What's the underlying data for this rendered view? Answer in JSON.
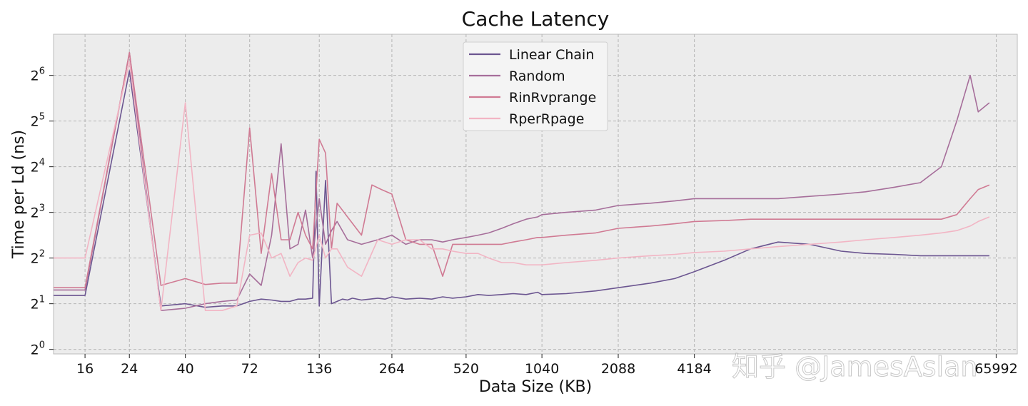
{
  "chart_data": {
    "type": "line",
    "title": "Cache Latency",
    "xlabel": "Data Size (KB)",
    "ylabel": "Time per Ld (ns)",
    "x_scale": "log2",
    "y_scale": "log2",
    "x_ticks": [
      "16",
      "24",
      "40",
      "72",
      "136",
      "264",
      "520",
      "1040",
      "2088",
      "4184",
      "65992"
    ],
    "y_ticks": [
      0,
      1,
      2,
      3,
      4,
      5,
      6
    ],
    "y_tick_base": "2",
    "grid": true,
    "legend_position": "top-center",
    "background": "#ececec",
    "series": [
      {
        "name": "Linear Chain",
        "color": "#6b5590",
        "points": [
          [
            12,
            1.18
          ],
          [
            16,
            1.18
          ],
          [
            24,
            6.1
          ],
          [
            32,
            0.95
          ],
          [
            40,
            1.0
          ],
          [
            48,
            0.92
          ],
          [
            56,
            0.95
          ],
          [
            64,
            0.95
          ],
          [
            72,
            1.05
          ],
          [
            80,
            1.1
          ],
          [
            88,
            1.08
          ],
          [
            96,
            1.05
          ],
          [
            104,
            1.05
          ],
          [
            112,
            1.1
          ],
          [
            120,
            1.1
          ],
          [
            128,
            1.12
          ],
          [
            132,
            3.9
          ],
          [
            136,
            0.95
          ],
          [
            144,
            3.7
          ],
          [
            152,
            1.0
          ],
          [
            160,
            1.05
          ],
          [
            168,
            1.1
          ],
          [
            176,
            1.08
          ],
          [
            184,
            1.12
          ],
          [
            200,
            1.08
          ],
          [
            216,
            1.1
          ],
          [
            232,
            1.12
          ],
          [
            248,
            1.1
          ],
          [
            264,
            1.15
          ],
          [
            300,
            1.1
          ],
          [
            340,
            1.12
          ],
          [
            380,
            1.1
          ],
          [
            420,
            1.15
          ],
          [
            460,
            1.12
          ],
          [
            520,
            1.15
          ],
          [
            580,
            1.2
          ],
          [
            640,
            1.18
          ],
          [
            720,
            1.2
          ],
          [
            800,
            1.22
          ],
          [
            900,
            1.2
          ],
          [
            1000,
            1.25
          ],
          [
            1040,
            1.2
          ],
          [
            1300,
            1.22
          ],
          [
            1700,
            1.28
          ],
          [
            2088,
            1.35
          ],
          [
            2800,
            1.45
          ],
          [
            3500,
            1.55
          ],
          [
            4184,
            1.7
          ],
          [
            5500,
            1.95
          ],
          [
            7000,
            2.2
          ],
          [
            9000,
            2.35
          ],
          [
            12000,
            2.3
          ],
          [
            16000,
            2.15
          ],
          [
            20000,
            2.1
          ],
          [
            26000,
            2.08
          ],
          [
            33000,
            2.05
          ],
          [
            42000,
            2.05
          ],
          [
            52000,
            2.05
          ],
          [
            62000,
            2.05
          ]
        ]
      },
      {
        "name": "Random",
        "color": "#a66e9a",
        "points": [
          [
            12,
            1.3
          ],
          [
            16,
            1.3
          ],
          [
            24,
            6.5
          ],
          [
            32,
            0.85
          ],
          [
            40,
            0.9
          ],
          [
            48,
            1.0
          ],
          [
            56,
            1.05
          ],
          [
            64,
            1.08
          ],
          [
            72,
            1.65
          ],
          [
            80,
            1.4
          ],
          [
            88,
            2.5
          ],
          [
            96,
            4.5
          ],
          [
            104,
            2.2
          ],
          [
            112,
            2.3
          ],
          [
            120,
            3.05
          ],
          [
            128,
            2.0
          ],
          [
            136,
            3.3
          ],
          [
            144,
            2.3
          ],
          [
            152,
            2.6
          ],
          [
            160,
            2.8
          ],
          [
            176,
            2.4
          ],
          [
            200,
            2.3
          ],
          [
            232,
            2.4
          ],
          [
            264,
            2.5
          ],
          [
            300,
            2.3
          ],
          [
            340,
            2.4
          ],
          [
            380,
            2.4
          ],
          [
            420,
            2.35
          ],
          [
            460,
            2.4
          ],
          [
            520,
            2.45
          ],
          [
            580,
            2.5
          ],
          [
            640,
            2.55
          ],
          [
            720,
            2.65
          ],
          [
            800,
            2.75
          ],
          [
            900,
            2.85
          ],
          [
            1000,
            2.9
          ],
          [
            1040,
            2.95
          ],
          [
            1300,
            3.0
          ],
          [
            1700,
            3.05
          ],
          [
            2088,
            3.15
          ],
          [
            2800,
            3.2
          ],
          [
            3500,
            3.25
          ],
          [
            4184,
            3.3
          ],
          [
            5500,
            3.3
          ],
          [
            7000,
            3.3
          ],
          [
            9000,
            3.3
          ],
          [
            12000,
            3.35
          ],
          [
            16000,
            3.4
          ],
          [
            20000,
            3.45
          ],
          [
            26000,
            3.55
          ],
          [
            33000,
            3.65
          ],
          [
            40000,
            4.0
          ],
          [
            46000,
            5.0
          ],
          [
            52000,
            6.0
          ],
          [
            56000,
            5.2
          ],
          [
            62000,
            5.4
          ]
        ]
      },
      {
        "name": "RinRvprange",
        "color": "#d07a93",
        "points": [
          [
            12,
            1.35
          ],
          [
            16,
            1.35
          ],
          [
            24,
            6.5
          ],
          [
            32,
            1.4
          ],
          [
            40,
            1.55
          ],
          [
            48,
            1.42
          ],
          [
            56,
            1.45
          ],
          [
            64,
            1.45
          ],
          [
            72,
            4.85
          ],
          [
            80,
            2.1
          ],
          [
            88,
            3.85
          ],
          [
            96,
            2.4
          ],
          [
            104,
            2.4
          ],
          [
            112,
            3.0
          ],
          [
            120,
            2.5
          ],
          [
            128,
            2.2
          ],
          [
            136,
            4.6
          ],
          [
            144,
            4.3
          ],
          [
            152,
            2.2
          ],
          [
            160,
            3.2
          ],
          [
            176,
            2.9
          ],
          [
            200,
            2.5
          ],
          [
            220,
            3.6
          ],
          [
            240,
            3.5
          ],
          [
            264,
            3.4
          ],
          [
            300,
            2.4
          ],
          [
            340,
            2.3
          ],
          [
            380,
            2.3
          ],
          [
            420,
            1.6
          ],
          [
            460,
            2.3
          ],
          [
            520,
            2.3
          ],
          [
            580,
            2.3
          ],
          [
            640,
            2.3
          ],
          [
            720,
            2.3
          ],
          [
            800,
            2.35
          ],
          [
            900,
            2.4
          ],
          [
            1000,
            2.45
          ],
          [
            1040,
            2.45
          ],
          [
            1300,
            2.5
          ],
          [
            1700,
            2.55
          ],
          [
            2088,
            2.65
          ],
          [
            2800,
            2.7
          ],
          [
            3500,
            2.75
          ],
          [
            4184,
            2.8
          ],
          [
            5500,
            2.82
          ],
          [
            7000,
            2.85
          ],
          [
            9000,
            2.85
          ],
          [
            12000,
            2.85
          ],
          [
            16000,
            2.85
          ],
          [
            20000,
            2.85
          ],
          [
            26000,
            2.85
          ],
          [
            33000,
            2.85
          ],
          [
            40000,
            2.85
          ],
          [
            46000,
            2.95
          ],
          [
            52000,
            3.3
          ],
          [
            56000,
            3.5
          ],
          [
            62000,
            3.6
          ]
        ]
      },
      {
        "name": "RperRpage",
        "color": "#f2b5c4",
        "points": [
          [
            12,
            2.0
          ],
          [
            16,
            2.0
          ],
          [
            24,
            6.3
          ],
          [
            32,
            0.85
          ],
          [
            40,
            5.4
          ],
          [
            48,
            0.85
          ],
          [
            56,
            0.85
          ],
          [
            64,
            0.95
          ],
          [
            72,
            2.5
          ],
          [
            80,
            2.55
          ],
          [
            88,
            2.0
          ],
          [
            96,
            2.1
          ],
          [
            104,
            1.6
          ],
          [
            112,
            1.9
          ],
          [
            120,
            2.0
          ],
          [
            128,
            1.95
          ],
          [
            136,
            2.5
          ],
          [
            144,
            2.0
          ],
          [
            152,
            2.2
          ],
          [
            160,
            2.2
          ],
          [
            176,
            1.8
          ],
          [
            200,
            1.6
          ],
          [
            232,
            2.4
          ],
          [
            264,
            2.3
          ],
          [
            300,
            2.4
          ],
          [
            340,
            2.4
          ],
          [
            380,
            2.2
          ],
          [
            420,
            2.2
          ],
          [
            460,
            2.15
          ],
          [
            520,
            2.1
          ],
          [
            580,
            2.1
          ],
          [
            640,
            2.0
          ],
          [
            720,
            1.9
          ],
          [
            800,
            1.9
          ],
          [
            900,
            1.85
          ],
          [
            1000,
            1.85
          ],
          [
            1040,
            1.85
          ],
          [
            1300,
            1.9
          ],
          [
            1700,
            1.95
          ],
          [
            2088,
            2.0
          ],
          [
            2800,
            2.05
          ],
          [
            3500,
            2.08
          ],
          [
            4184,
            2.12
          ],
          [
            5500,
            2.15
          ],
          [
            7000,
            2.2
          ],
          [
            9000,
            2.25
          ],
          [
            12000,
            2.3
          ],
          [
            16000,
            2.35
          ],
          [
            20000,
            2.4
          ],
          [
            26000,
            2.45
          ],
          [
            33000,
            2.5
          ],
          [
            40000,
            2.55
          ],
          [
            46000,
            2.6
          ],
          [
            52000,
            2.7
          ],
          [
            56000,
            2.8
          ],
          [
            62000,
            2.9
          ]
        ]
      }
    ]
  },
  "watermark": "知乎 @JamesAslan"
}
